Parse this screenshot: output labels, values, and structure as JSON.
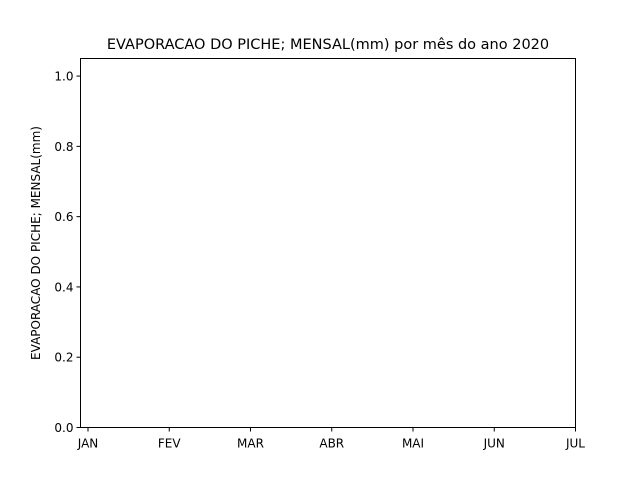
{
  "chart_data": {
    "type": "line",
    "title": "EVAPORACAO DO PICHE; MENSAL(mm) por mês do ano 2020",
    "xlabel": "",
    "ylabel": "EVAPORACAO DO PICHE; MENSAL(mm)",
    "x_ticks": [
      "JAN",
      "FEV",
      "MAR",
      "ABR",
      "MAI",
      "JUN",
      "JUL"
    ],
    "y_ticks": [
      "0.0",
      "0.2",
      "0.4",
      "0.6",
      "0.8",
      "1.0"
    ],
    "ylim": [
      0,
      1.05
    ],
    "series": [],
    "grid": false
  }
}
